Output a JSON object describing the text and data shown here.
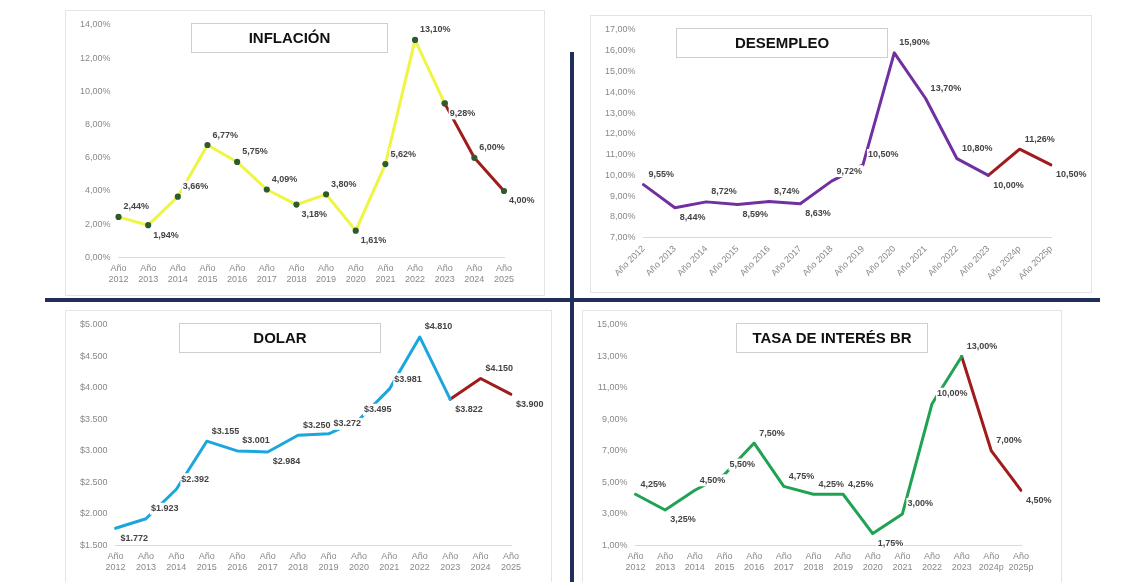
{
  "chart_data": [
    {
      "type": "line",
      "title": "INFLACIÓN",
      "categories": [
        "Año 2012",
        "Año 2013",
        "Año 2014",
        "Año 2015",
        "Año 2016",
        "Año 2017",
        "Año 2018",
        "Año 2019",
        "Año 2020",
        "Año 2021",
        "Año 2022",
        "Año 2023",
        "Año 2024",
        "Año 2025"
      ],
      "series": [
        {
          "color": "#eef542",
          "values": [
            2.44,
            1.94,
            3.66,
            6.77,
            5.75,
            4.09,
            3.18,
            3.8,
            1.61,
            5.62,
            13.1,
            9.28,
            null,
            null
          ],
          "value_labels": [
            "2,44%",
            "1,94%",
            "3,66%",
            "6,77%",
            "5,75%",
            "4,09%",
            "3,18%",
            "3,80%",
            "1,61%",
            "5,62%",
            "13,10%",
            "9,28%",
            null,
            null
          ]
        },
        {
          "color": "#a01c1c",
          "values": [
            null,
            null,
            null,
            null,
            null,
            null,
            null,
            null,
            null,
            null,
            null,
            9.28,
            6.0,
            4.0
          ],
          "value_labels": [
            null,
            null,
            null,
            null,
            null,
            null,
            null,
            null,
            null,
            null,
            null,
            null,
            "6,00%",
            "4,00%"
          ]
        }
      ],
      "ylim": [
        0,
        14
      ],
      "yticks": [
        {
          "value": 0,
          "label": "0,00%"
        },
        {
          "value": 2,
          "label": "2,00%"
        },
        {
          "value": 4,
          "label": "4,00%"
        },
        {
          "value": 6,
          "label": "6,00%"
        },
        {
          "value": 8,
          "label": "8,00%"
        },
        {
          "value": 10,
          "label": "10,00%"
        },
        {
          "value": 12,
          "label": "12,00%"
        },
        {
          "value": 14,
          "label": "14,00%"
        }
      ],
      "marker": "circle",
      "grid": false,
      "legend": false
    },
    {
      "type": "line",
      "title": "DESEMPLEO",
      "categories": [
        "Año 2012",
        "Año 2013",
        "Año 2014",
        "Año 2015",
        "Año 2016",
        "Año 2017",
        "Año 2018",
        "Año 2019",
        "Año 2020",
        "Año 2021",
        "Año 2022",
        "Año 2023",
        "Año 2024p",
        "Año 2025p"
      ],
      "series": [
        {
          "color": "#7030a0",
          "values": [
            9.55,
            8.44,
            8.72,
            8.59,
            8.74,
            8.63,
            9.72,
            10.5,
            15.9,
            13.7,
            10.8,
            10.0,
            null,
            null
          ],
          "value_labels": [
            "9,55%",
            "8,44%",
            "8,72%",
            "8,59%",
            "8,74%",
            "8,63%",
            "9,72%",
            "10,50%",
            "15,90%",
            "13,70%",
            "10,80%",
            "10,00%",
            null,
            null
          ]
        },
        {
          "color": "#a01c1c",
          "values": [
            null,
            null,
            null,
            null,
            null,
            null,
            null,
            null,
            null,
            null,
            null,
            10.0,
            11.26,
            10.5
          ],
          "value_labels": [
            null,
            null,
            null,
            null,
            null,
            null,
            null,
            null,
            null,
            null,
            null,
            null,
            "11,26%",
            "10,50%"
          ]
        }
      ],
      "ylim": [
        7,
        17
      ],
      "yticks": [
        {
          "value": 7,
          "label": "7,00%"
        },
        {
          "value": 8,
          "label": "8,00%"
        },
        {
          "value": 9,
          "label": "9,00%"
        },
        {
          "value": 10,
          "label": "10,00%"
        },
        {
          "value": 11,
          "label": "11,00%"
        },
        {
          "value": 12,
          "label": "12,00%"
        },
        {
          "value": 13,
          "label": "13,00%"
        },
        {
          "value": 14,
          "label": "14,00%"
        },
        {
          "value": 15,
          "label": "15,00%"
        },
        {
          "value": 16,
          "label": "16,00%"
        },
        {
          "value": 17,
          "label": "17,00%"
        }
      ],
      "marker": "none",
      "grid": false,
      "legend": false
    },
    {
      "type": "line",
      "title": "DOLAR",
      "categories": [
        "Año 2012",
        "Año 2013",
        "Año 2014",
        "Año 2015",
        "Año 2016",
        "Año 2017",
        "Año 2018",
        "Año 2019",
        "Año 2020",
        "Año 2021",
        "Año 2022",
        "Año 2023",
        "Año 2024",
        "Año 2025"
      ],
      "series": [
        {
          "color": "#1ba6de",
          "values": [
            1772,
            1923,
            2392,
            3155,
            3001,
            2984,
            3250,
            3272,
            3495,
            3981,
            4810,
            3822,
            null,
            null
          ],
          "value_labels": [
            "$1.772",
            "$1.923",
            "$2.392",
            "$3.155",
            "$3.001",
            "$2.984",
            "$3.250",
            "$3.272",
            "$3.495",
            "$3.981",
            "$4.810",
            "$3.822",
            null,
            null
          ]
        },
        {
          "color": "#a01c1c",
          "values": [
            null,
            null,
            null,
            null,
            null,
            null,
            null,
            null,
            null,
            null,
            null,
            3822,
            4150,
            3900
          ],
          "value_labels": [
            null,
            null,
            null,
            null,
            null,
            null,
            null,
            null,
            null,
            null,
            null,
            null,
            "$4.150",
            "$3.900"
          ]
        }
      ],
      "ylim": [
        1500,
        5000
      ],
      "yticks": [
        {
          "value": 1500,
          "label": "$1.500"
        },
        {
          "value": 2000,
          "label": "$2.000"
        },
        {
          "value": 2500,
          "label": "$2.500"
        },
        {
          "value": 3000,
          "label": "$3.000"
        },
        {
          "value": 3500,
          "label": "$3.500"
        },
        {
          "value": 4000,
          "label": "$4.000"
        },
        {
          "value": 4500,
          "label": "$4.500"
        },
        {
          "value": 5000,
          "label": "$5.000"
        }
      ],
      "marker": "none",
      "grid": false,
      "legend": false
    },
    {
      "type": "line",
      "title": "TASA DE INTERÉS BR",
      "categories": [
        "Año 2012",
        "Año 2013",
        "Año 2014",
        "Año 2015",
        "Año 2016",
        "Año 2017",
        "Año 2018",
        "Año 2019",
        "Año 2020",
        "Año 2021",
        "Año 2022",
        "Año 2023",
        "Año 2024p",
        "Año 2025p"
      ],
      "series": [
        {
          "color": "#1fa353",
          "values": [
            4.25,
            3.25,
            4.5,
            5.5,
            7.5,
            4.75,
            4.25,
            4.25,
            1.75,
            3.0,
            10.0,
            13.0,
            null,
            null
          ],
          "value_labels": [
            "4,25%",
            "3,25%",
            "4,50%",
            "5,50%",
            "7,50%",
            "4,75%",
            "4,25%",
            "4,25%",
            "1,75%",
            "3,00%",
            "10,00%",
            "13,00%",
            null,
            null
          ]
        },
        {
          "color": "#a01c1c",
          "values": [
            null,
            null,
            null,
            null,
            null,
            null,
            null,
            null,
            null,
            null,
            null,
            13.0,
            7.0,
            4.5
          ],
          "value_labels": [
            null,
            null,
            null,
            null,
            null,
            null,
            null,
            null,
            null,
            null,
            null,
            null,
            "7,00%",
            "4,50%"
          ]
        }
      ],
      "ylim": [
        1,
        15
      ],
      "yticks": [
        {
          "value": 1,
          "label": "1,00%"
        },
        {
          "value": 3,
          "label": "3,00%"
        },
        {
          "value": 5,
          "label": "5,00%"
        },
        {
          "value": 7,
          "label": "7,00%"
        },
        {
          "value": 9,
          "label": "9,00%"
        },
        {
          "value": 11,
          "label": "11,00%"
        },
        {
          "value": 13,
          "label": "13,00%"
        },
        {
          "value": 15,
          "label": "15,00%"
        }
      ],
      "marker": "none",
      "grid": false,
      "legend": false
    }
  ]
}
